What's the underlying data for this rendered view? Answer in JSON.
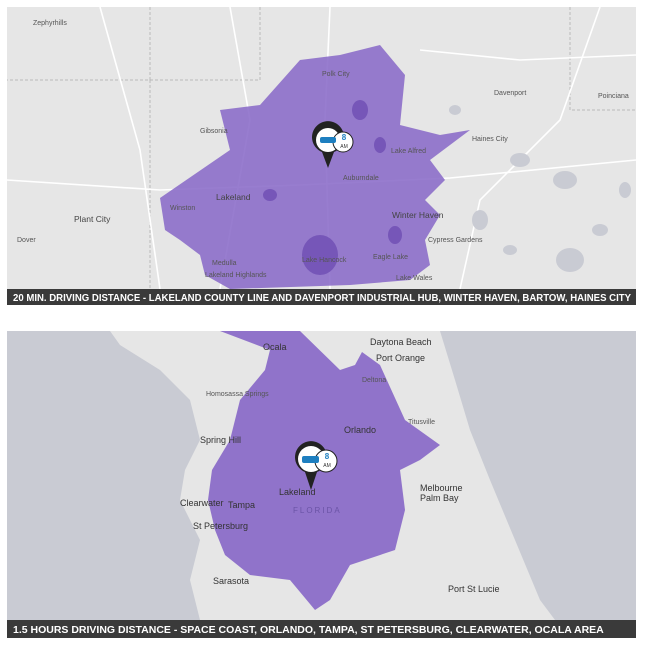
{
  "maps": [
    {
      "caption": "20 MIN. DRIVING DISTANCE - LAKELAND COUNTY LINE AND DAVENPORT INDUSTRIAL HUB, WINTER HAVEN, BARTOW, HAINES CITY",
      "marker": {
        "hour": "8",
        "period": "AM"
      },
      "labels": [
        "Zephyrhills",
        "Polk City",
        "Davenport",
        "Poinciana",
        "Gibsonia",
        "Haines City",
        "Lake Alfred",
        "Auburndale",
        "Lakeland",
        "Winston",
        "Plant City",
        "Winter Haven",
        "Dover",
        "Cypress Gardens",
        "Eagle Lake",
        "Lake Hancock",
        "Medulla",
        "Lakeland Highlands",
        "Lake Wales"
      ]
    },
    {
      "caption": "1.5 HOURS DRIVING DISTANCE - SPACE COAST, ORLANDO, TAMPA, ST PETERSBURG, CLEARWATER, OCALA AREA",
      "marker": {
        "hour": "8",
        "period": "AM"
      },
      "labels": [
        "Ocala",
        "Daytona Beach",
        "Port Orange",
        "Deltona",
        "Homosassa Springs",
        "Titusville",
        "Orlando",
        "Spring Hill",
        "Lakeland",
        "Melbourne",
        "Palm Bay",
        "Clearwater",
        "Tampa",
        "FLORIDA",
        "St Petersburg",
        "Sarasota",
        "Port St Lucie"
      ]
    }
  ]
}
